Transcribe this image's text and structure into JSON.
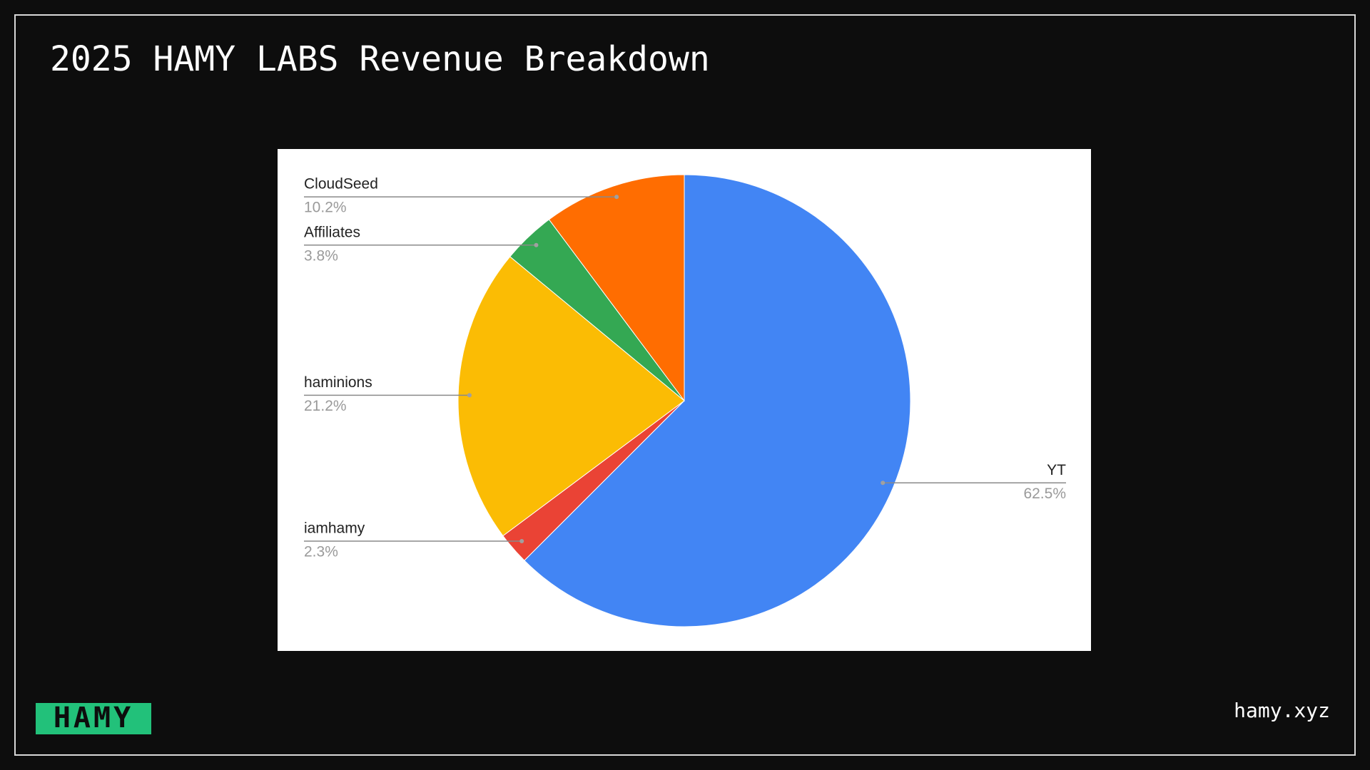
{
  "chart_data": {
    "type": "pie",
    "title": "2025 HAMY LABS Revenue Breakdown",
    "categories": [
      "YT",
      "iamhamy",
      "haminions",
      "Affiliates",
      "CloudSeed"
    ],
    "values": [
      62.5,
      2.3,
      21.2,
      3.8,
      10.2
    ],
    "value_labels": [
      "62.5%",
      "2.3%",
      "21.2%",
      "3.8%",
      "10.2%"
    ],
    "colors": [
      "#4285f4",
      "#ea4335",
      "#fbbc04",
      "#34a853",
      "#ff6d01"
    ]
  },
  "footer": {
    "logo": "HAMY",
    "site": "hamy.xyz"
  }
}
